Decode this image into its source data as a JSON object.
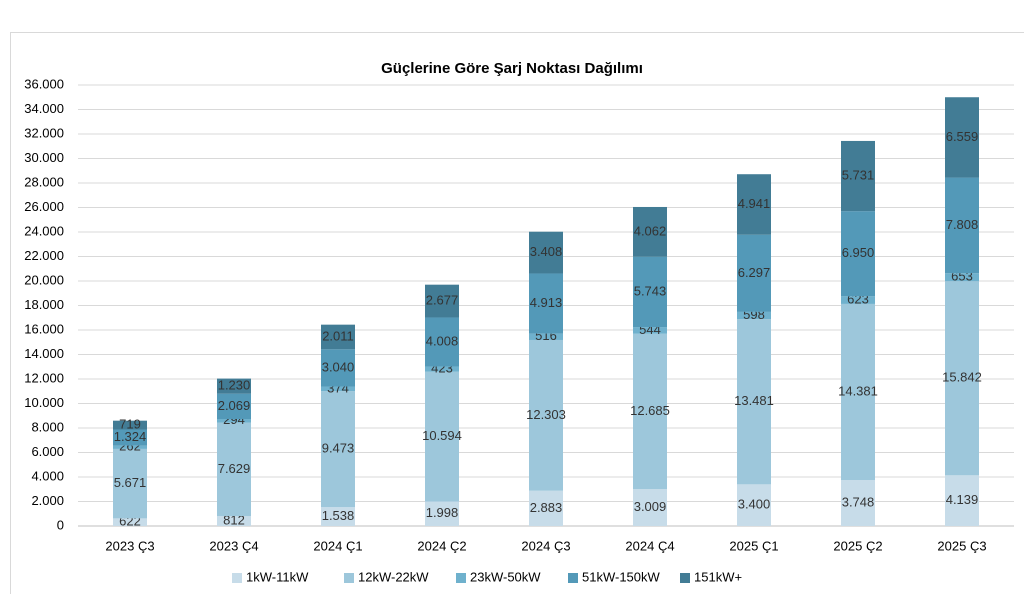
{
  "chart_data": {
    "type": "stacked-bar",
    "title": "Güçlerine Göre Şarj Noktası Dağılımı",
    "categories": [
      "2023 Ç3",
      "2023 Ç4",
      "2024 Ç1",
      "2024 Ç2",
      "2024 Ç3",
      "2024 Ç4",
      "2025 Ç1",
      "2025 Ç2",
      "2025 Ç3"
    ],
    "series": [
      {
        "name": "1kW-11kW",
        "color": "#c7dce9",
        "values": [
          622,
          812,
          1538,
          1998,
          2883,
          3009,
          3400,
          3748,
          4139
        ],
        "value_labels": [
          "622",
          "812",
          "1.538",
          "1.998",
          "2.883",
          "3.009",
          "3.400",
          "3.748",
          "4.139"
        ]
      },
      {
        "name": "12kW-22kW",
        "color": "#9dc7db",
        "values": [
          5671,
          7629,
          9473,
          10594,
          12303,
          12685,
          13481,
          14381,
          15842
        ],
        "value_labels": [
          "5.671",
          "7.629",
          "9.473",
          "10.594",
          "12.303",
          "12.685",
          "13.481",
          "14.381",
          "15.842"
        ]
      },
      {
        "name": "23kW-50kW",
        "color": "#6fb1cd",
        "values": [
          262,
          294,
          374,
          423,
          516,
          544,
          598,
          623,
          653
        ],
        "value_labels": [
          "262",
          "294",
          "374",
          "423",
          "516",
          "544",
          "598",
          "623",
          "653"
        ]
      },
      {
        "name": "51kW-150kW",
        "color": "#5399b8",
        "values": [
          1324,
          2069,
          3040,
          4008,
          4913,
          5743,
          6297,
          6950,
          7808
        ],
        "value_labels": [
          "1.324",
          "2.069",
          "3.040",
          "4.008",
          "4.913",
          "5.743",
          "6.297",
          "6.950",
          "7.808"
        ]
      },
      {
        "name": "151kW+",
        "color": "#427c95",
        "values": [
          719,
          1230,
          2011,
          2677,
          3408,
          4062,
          4941,
          5731,
          6559
        ],
        "value_labels": [
          "719",
          "1.230",
          "2.011",
          "2.677",
          "3.408",
          "4.062",
          "4.941",
          "5.731",
          "6.559"
        ]
      }
    ],
    "ylim": [
      0,
      36000
    ],
    "yticks": [
      0,
      {
        "value": 2000,
        "label": "2.000"
      },
      {
        "value": 4000,
        "label": "4.000"
      },
      {
        "value": 6000,
        "label": "6.000"
      },
      {
        "value": 8000,
        "label": "8.000"
      },
      {
        "value": 10000,
        "label": "10.000"
      },
      {
        "value": 12000,
        "label": "12.000"
      },
      {
        "value": 14000,
        "label": "14.000"
      },
      {
        "value": 16000,
        "label": "16.000"
      },
      {
        "value": 18000,
        "label": "18.000"
      },
      {
        "value": 20000,
        "label": "20.000"
      },
      {
        "value": 22000,
        "label": "22.000"
      },
      {
        "value": 24000,
        "label": "24.000"
      },
      {
        "value": 26000,
        "label": "26.000"
      },
      {
        "value": 28000,
        "label": "28.000"
      },
      {
        "value": 30000,
        "label": "30.000"
      },
      {
        "value": 32000,
        "label": "32.000"
      },
      {
        "value": 34000,
        "label": "34.000"
      },
      {
        "value": 36000,
        "label": "36.000"
      }
    ],
    "grid": true,
    "legend": "bottom"
  }
}
